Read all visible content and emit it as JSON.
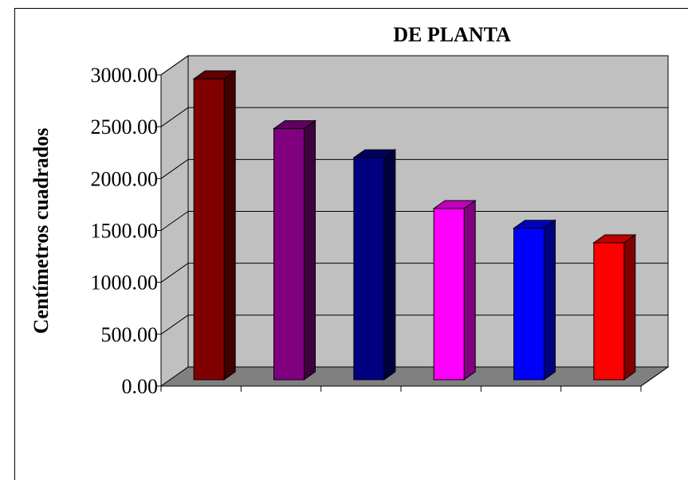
{
  "chart_data": {
    "type": "bar",
    "title": "DE PLANTA",
    "xlabel": "",
    "ylabel": "Centímetros cuadrados",
    "ylim": [
      0,
      3000
    ],
    "yticks": [
      "0.00",
      "500.00",
      "1000.00",
      "1500.00",
      "2000.00",
      "2500.00",
      "3000.00"
    ],
    "grid": true,
    "legend": "none",
    "three_d": true,
    "wall_color": "#c0c0c0",
    "floor_color": "#808080",
    "series": [
      {
        "values": [
          2900,
          2420,
          2140,
          1650,
          1460,
          1320
        ],
        "colors": [
          "#800000",
          "#800080",
          "#000080",
          "#ff00ff",
          "#0000ff",
          "#ff0000"
        ]
      }
    ]
  }
}
